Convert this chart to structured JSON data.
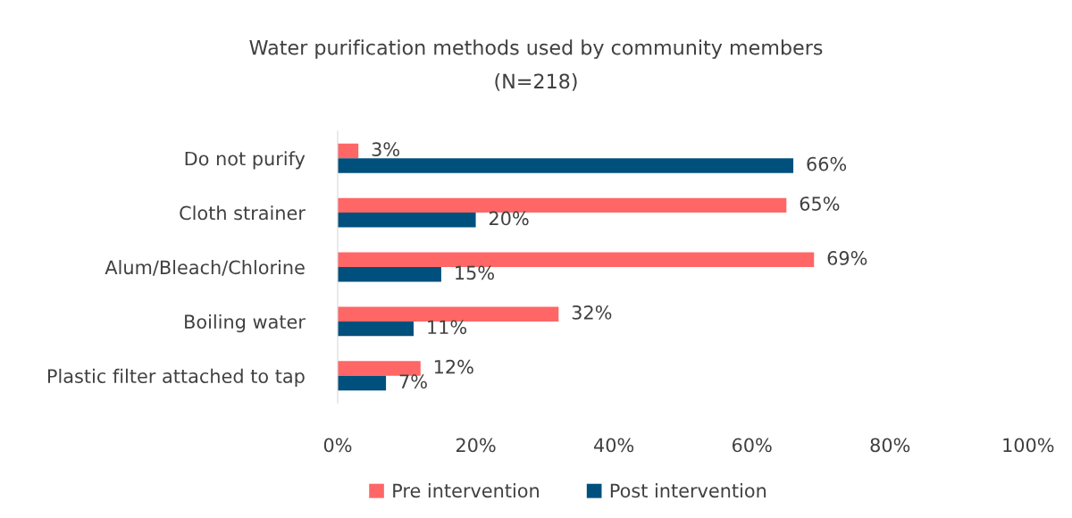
{
  "chart_data": {
    "type": "bar",
    "orientation": "horizontal",
    "title": "Water purification methods used by community members",
    "subtitle": "(N=218)",
    "categories": [
      "Do not purify",
      "Cloth strainer",
      "Alum/Bleach/Chlorine",
      "Boiling water",
      "Plastic filter attached to tap"
    ],
    "series": [
      {
        "name": "Pre intervention",
        "color": "#ff6666",
        "values": [
          3,
          65,
          69,
          32,
          12
        ],
        "value_labels": [
          "3%",
          "65%",
          "69%",
          "32%",
          "12%"
        ]
      },
      {
        "name": "Post intervention",
        "color": "#00507d",
        "values": [
          66,
          20,
          15,
          11,
          7
        ],
        "value_labels": [
          "66%",
          "20%",
          "15%",
          "11%",
          "7%"
        ]
      }
    ],
    "xlim": [
      0,
      100
    ],
    "xticks": [
      {
        "value": 0,
        "label": "0%"
      },
      {
        "value": 20,
        "label": "20%"
      },
      {
        "value": 40,
        "label": "40%"
      },
      {
        "value": 60,
        "label": "60%"
      },
      {
        "value": 80,
        "label": "80%"
      },
      {
        "value": 100,
        "label": "100%"
      }
    ],
    "grid": false,
    "legend": "bottom"
  }
}
